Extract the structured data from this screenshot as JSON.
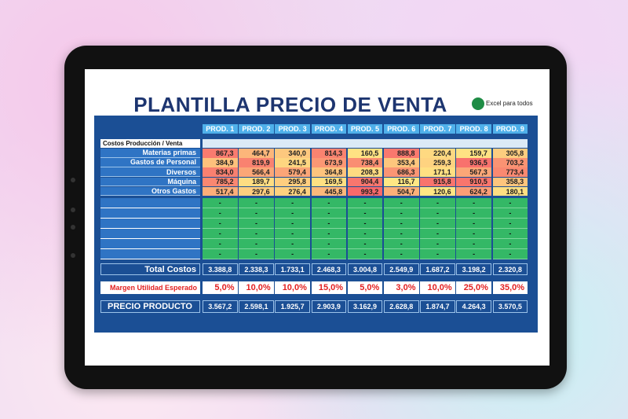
{
  "header": {
    "title": "PLANTILLA PRECIO DE VENTA",
    "brand": "Excel para todos"
  },
  "table": {
    "columns": [
      "PROD. 1",
      "PROD. 2",
      "PROD. 3",
      "PROD. 4",
      "PROD. 5",
      "PROD. 6",
      "PROD. 7",
      "PROD. 8",
      "PROD. 9"
    ],
    "section_label": "Costos Producción / Venta",
    "rows": [
      {
        "label": "Materias primas",
        "cells": [
          "867,3",
          "464,7",
          "340,0",
          "814,3",
          "160,5",
          "888,8",
          "220,4",
          "159,7",
          "305,8"
        ]
      },
      {
        "label": "Gastos de Personal",
        "cells": [
          "384,9",
          "819,9",
          "241,5",
          "673,9",
          "738,4",
          "353,4",
          "259,3",
          "936,5",
          "703,2"
        ]
      },
      {
        "label": "Diversos",
        "cells": [
          "834,0",
          "566,4",
          "579,4",
          "364,8",
          "208,3",
          "686,3",
          "171,1",
          "567,3",
          "773,4"
        ]
      },
      {
        "label": "Máquina",
        "cells": [
          "785,2",
          "189,7",
          "295,8",
          "169,5",
          "904,4",
          "116,7",
          "915,8",
          "910,5",
          "358,3"
        ]
      },
      {
        "label": "Otros Gastos",
        "cells": [
          "517,4",
          "297,6",
          "276,4",
          "445,8",
          "993,2",
          "504,7",
          "120,6",
          "624,2",
          "180,1"
        ]
      }
    ],
    "blank_rows": [
      [
        "-",
        "-",
        "-",
        "-",
        "-",
        "-",
        "-",
        "-",
        "-"
      ],
      [
        "-",
        "-",
        "-",
        "-",
        "-",
        "-",
        "-",
        "-",
        "-"
      ],
      [
        "-",
        "-",
        "-",
        "-",
        "-",
        "-",
        "-",
        "-",
        "-"
      ],
      [
        "-",
        "-",
        "-",
        "-",
        "-",
        "-",
        "-",
        "-",
        "-"
      ],
      [
        "-",
        "-",
        "-",
        "-",
        "-",
        "-",
        "-",
        "-",
        "-"
      ],
      [
        "-",
        "-",
        "-",
        "-",
        "-",
        "-",
        "-",
        "-",
        "-"
      ]
    ],
    "total": {
      "label": "Total Costos",
      "cells": [
        "3.388,8",
        "2.338,3",
        "1.733,1",
        "2.468,3",
        "3.004,8",
        "2.549,9",
        "1.687,2",
        "3.198,2",
        "2.320,8"
      ]
    },
    "margin": {
      "label": "Margen Utilidad Esperado",
      "cells": [
        "5,0%",
        "10,0%",
        "10,0%",
        "15,0%",
        "5,0%",
        "3,0%",
        "10,0%",
        "25,0%",
        "35,0%"
      ]
    },
    "price": {
      "label": "PRECIO PRODUCTO",
      "cells": [
        "3.567,2",
        "2.598,1",
        "1.925,7",
        "2.903,9",
        "3.162,9",
        "2.628,8",
        "1.874,7",
        "4.264,3",
        "3.570,5"
      ]
    }
  }
}
